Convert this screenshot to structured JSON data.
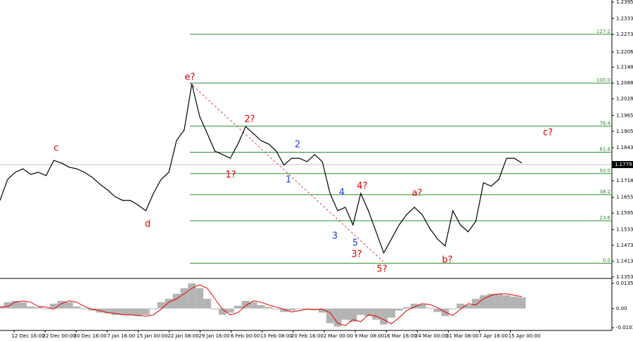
{
  "chart_data": {
    "type": "line",
    "ylim": [
      1.135,
      1.2403
    ],
    "yticks": [
      1.2395,
      1.2333,
      1.2273,
      1.2206,
      1.2148,
      1.2088,
      1.2028,
      1.1965,
      1.1905,
      1.1843,
      1.1718,
      1.1655,
      1.1595,
      1.1533,
      1.1473,
      1.1413,
      1.1353
    ],
    "last_price": 1.1779,
    "x_labels": [
      "12 Dec 16:00",
      "22 Dec 00:00",
      "30 Dec 16:00",
      "7 Jan 16:00",
      "15 Jan 00:00",
      "22 Jan 08:00",
      "29 Jan 16:00",
      "6 Feb 00:00",
      "13 Feb 08:00",
      "20 Feb 16:00",
      "2 Mar 00:00",
      "9 Mar 08:00",
      "16 Mar 16:00",
      "24 Mar 00:00",
      "31 Mar 08:00",
      "7 Apr 16:00",
      "15 Apr 00:00"
    ],
    "series": [
      {
        "name": "price",
        "color": "#000000",
        "values": [
          1.1643,
          1.1723,
          1.175,
          1.1763,
          1.1742,
          1.175,
          1.1737,
          1.1795,
          1.1785,
          1.1769,
          1.1763,
          1.175,
          1.1731,
          1.1705,
          1.1683,
          1.1657,
          1.1643,
          1.1643,
          1.1625,
          1.1604,
          1.167,
          1.1723,
          1.175,
          1.187,
          1.191,
          1.2085,
          1.1963,
          1.1897,
          1.183,
          1.1817,
          1.1803,
          1.1857,
          1.1923,
          1.1897,
          1.187,
          1.1857,
          1.183,
          1.1777,
          1.1803,
          1.1803,
          1.179,
          1.1817,
          1.179,
          1.167,
          1.1604,
          1.1617,
          1.155,
          1.167,
          1.1604,
          1.1524,
          1.1444,
          1.1497,
          1.155,
          1.159,
          1.1617,
          1.159,
          1.1537,
          1.1497,
          1.147,
          1.1604,
          1.155,
          1.1524,
          1.1564,
          1.171,
          1.1697,
          1.1723,
          1.1803,
          1.1803,
          1.1785
        ]
      }
    ],
    "fib_levels": [
      {
        "label": "127.2",
        "price": 1.2273
      },
      {
        "label": "100.0",
        "price": 1.2088
      },
      {
        "label": "76.4",
        "price": 1.1925
      },
      {
        "label": "61.8",
        "price": 1.1826
      },
      {
        "label": "50.0",
        "price": 1.1745
      },
      {
        "label": "38.2",
        "price": 1.1665
      },
      {
        "label": "23.6",
        "price": 1.1566
      },
      {
        "label": "0.0",
        "price": 1.1405
      }
    ],
    "fib_color": "#2e8b2e",
    "annotations": [
      {
        "text": "c",
        "color": "#e00000"
      },
      {
        "text": "d",
        "color": "#e00000"
      },
      {
        "text": "e?",
        "color": "#e00000"
      },
      {
        "text": "2?",
        "color": "#e00000"
      },
      {
        "text": "1?",
        "color": "#e00000"
      },
      {
        "text": "1",
        "color": "#2040e0"
      },
      {
        "text": "2",
        "color": "#2040e0"
      },
      {
        "text": "3",
        "color": "#2040e0"
      },
      {
        "text": "4",
        "color": "#2040e0"
      },
      {
        "text": "5",
        "color": "#2040e0"
      },
      {
        "text": "3?",
        "color": "#e00000"
      },
      {
        "text": "4?",
        "color": "#e00000"
      },
      {
        "text": "5?",
        "color": "#e00000"
      },
      {
        "text": "a?",
        "color": "#e00000"
      },
      {
        "text": "b?",
        "color": "#e00000"
      },
      {
        "text": "c?",
        "color": "#e00000"
      }
    ],
    "oscillator": {
      "ylim": [
        -0.0118,
        0.0158
      ],
      "yticks": [
        0.0135,
        {
          "value": 0,
          "label": "0.00"
        },
        -0.0103
      ],
      "histogram": {
        "color": "#b4b4b4",
        "values": [
          0.0011,
          0.0034,
          0.0041,
          0.0034,
          0.0011,
          0.0008,
          -0.0004,
          0.0026,
          0.0041,
          0.0034,
          0.0011,
          -0.0004,
          -0.0011,
          -0.0022,
          -0.0026,
          -0.0034,
          -0.0034,
          -0.0037,
          -0.0041,
          -0.0034,
          -0.0004,
          0.0034,
          0.0052,
          0.0079,
          0.0109,
          0.0135,
          0.0109,
          0.0052,
          -0.0004,
          -0.0034,
          -0.0022,
          0.0015,
          0.0041,
          0.0034,
          0.0019,
          0.0008,
          -0.0004,
          -0.0019,
          -0.0011,
          -0.0004,
          -0.0007,
          -0.0004,
          -0.0022,
          -0.0079,
          -0.0097,
          -0.006,
          -0.0071,
          -0.0034,
          -0.0041,
          -0.006,
          -0.0086,
          -0.0049,
          -0.0011,
          0.0008,
          0.0026,
          0.0022,
          0.0004,
          -0.0019,
          -0.0041,
          -0.0004,
          0.0026,
          0.0019,
          0.0052,
          0.0071,
          0.0079,
          0.0079,
          0.0071,
          0.0064,
          0.006
        ]
      },
      "signal": {
        "color": "#e00000",
        "values": [
          0.0008,
          0.0011,
          0.0034,
          0.0041,
          0.0034,
          0.0011,
          0.0008,
          -0.0004,
          0.0026,
          0.0041,
          0.0034,
          0.0011,
          -0.0004,
          -0.0011,
          -0.0022,
          -0.0026,
          -0.0034,
          -0.0034,
          -0.0037,
          -0.0041,
          -0.0034,
          -0.0004,
          0.0034,
          0.0052,
          0.0079,
          0.0109,
          0.0128,
          0.0109,
          0.0052,
          -0.0004,
          -0.0034,
          -0.0022,
          0.0015,
          0.0041,
          0.0034,
          0.0019,
          0.0008,
          -0.0004,
          -0.0019,
          -0.0011,
          -0.0004,
          -0.0007,
          -0.0004,
          -0.0022,
          -0.0079,
          -0.0092,
          -0.006,
          -0.0071,
          -0.0034,
          -0.0041,
          -0.006,
          -0.0082,
          -0.0049,
          -0.0011,
          0.0008,
          0.0026,
          0.0022,
          0.0004,
          -0.0019,
          -0.0038,
          -0.0004,
          0.0026,
          0.0019,
          0.0052,
          0.0071,
          0.0079,
          0.0079,
          0.0071,
          0.0064
        ]
      }
    }
  }
}
